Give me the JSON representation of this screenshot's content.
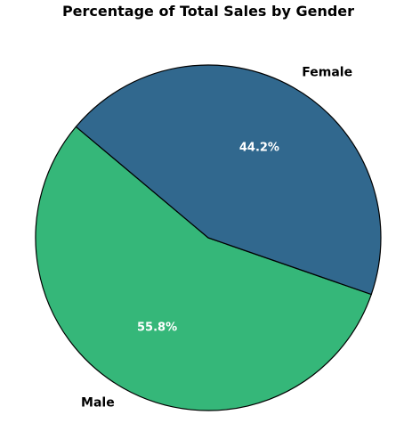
{
  "chart_data": {
    "type": "pie",
    "title": "Percentage of Total Sales by Gender",
    "categories": [
      "Male",
      "Female"
    ],
    "values": [
      55.8,
      44.2
    ],
    "value_labels": [
      "55.8%",
      "44.2%"
    ],
    "colors": [
      "#35b779",
      "#31688e"
    ],
    "edge_color": "#000000",
    "start_angle_deg": 140,
    "direction": "counterclockwise"
  }
}
